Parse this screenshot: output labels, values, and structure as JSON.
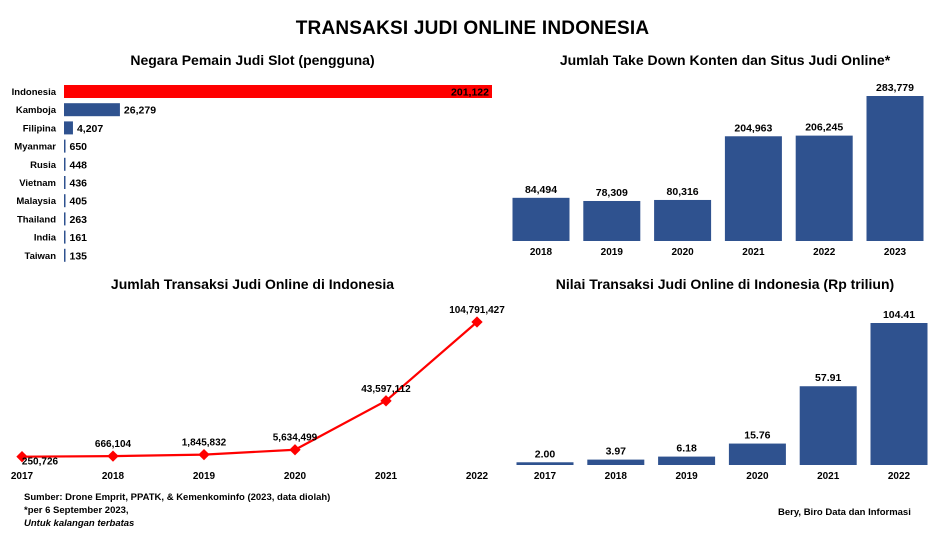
{
  "title": "TRANSAKSI JUDI ONLINE INDONESIA",
  "colors": {
    "bar": "#2F528F",
    "highlight": "#FF0000",
    "line": "#FF0000"
  },
  "chart_data": [
    {
      "type": "bar",
      "orientation": "horizontal",
      "title": "Negara Pemain Judi Slot (pengguna)",
      "categories": [
        "Indonesia",
        "Kamboja",
        "Filipina",
        "Myanmar",
        "Rusia",
        "Vietnam",
        "Malaysia",
        "Thailand",
        "India",
        "Taiwan"
      ],
      "values": [
        201122,
        26279,
        4207,
        650,
        448,
        436,
        405,
        263,
        161,
        135
      ],
      "labels": [
        "201,122",
        "26,279",
        "4,207",
        "650",
        "448",
        "436",
        "405",
        "263",
        "161",
        "135"
      ],
      "highlight": "Indonesia"
    },
    {
      "type": "bar",
      "title": "Jumlah Take Down Konten dan Situs Judi Online*",
      "categories": [
        "2018",
        "2019",
        "2020",
        "2021",
        "2022",
        "2023"
      ],
      "values": [
        84494,
        78309,
        80316,
        204963,
        206245,
        283779
      ],
      "labels": [
        "84,494",
        "78,309",
        "80,316",
        "204,963",
        "206,245",
        "283,779"
      ]
    },
    {
      "type": "line",
      "title": "Jumlah Transaksi Judi Online di Indonesia",
      "categories": [
        "2017",
        "2018",
        "2019",
        "2020",
        "2021",
        "2022"
      ],
      "values": [
        250726,
        666104,
        1845832,
        5634499,
        43597112,
        104791427
      ],
      "labels": [
        "250,726",
        "666,104",
        "1,845,832",
        "5,634,499",
        "43,597,112",
        "104,791,427"
      ]
    },
    {
      "type": "bar",
      "title": "Nilai Transaksi Judi Online di Indonesia (Rp triliun)",
      "categories": [
        "2017",
        "2018",
        "2019",
        "2020",
        "2021",
        "2022"
      ],
      "values": [
        2.0,
        3.97,
        6.18,
        15.76,
        57.91,
        104.41
      ],
      "labels": [
        "2.00",
        "3.97",
        "6.18",
        "15.76",
        "57.91",
        "104.41"
      ]
    }
  ],
  "footer": {
    "source": "Sumber: Drone Emprit, PPATK, & Kemenkominfo (2023, data diolah)",
    "note": "*per 6 September 2023,",
    "restriction": "Untuk kalangan terbatas",
    "credit": "Bery, Biro Data dan Informasi"
  }
}
